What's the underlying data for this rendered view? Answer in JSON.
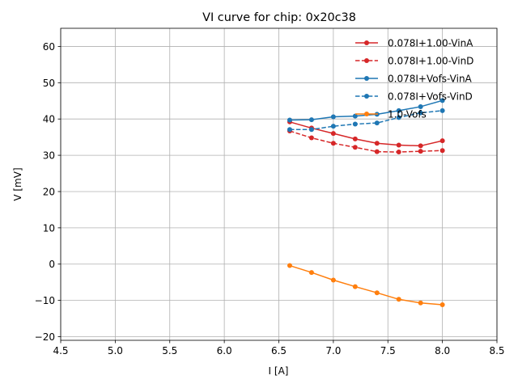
{
  "chart_data": {
    "type": "line",
    "title": "VI curve for chip: 0x20c38",
    "xlabel": "I [A]",
    "ylabel": "V [mV]",
    "xlim": [
      4.5,
      8.5
    ],
    "ylim": [
      -21,
      65
    ],
    "xticks": [
      4.5,
      5.0,
      5.5,
      6.0,
      6.5,
      7.0,
      7.5,
      8.0,
      8.5
    ],
    "xtick_labels": [
      "4.5",
      "5.0",
      "5.5",
      "6.0",
      "6.5",
      "7.0",
      "7.5",
      "8.0",
      "8.5"
    ],
    "yticks": [
      -20,
      -10,
      0,
      10,
      20,
      30,
      40,
      50,
      60
    ],
    "ytick_labels": [
      "−20",
      "−10",
      "0",
      "10",
      "20",
      "30",
      "40",
      "50",
      "60"
    ],
    "grid": true,
    "legend_position": "top-right",
    "x": [
      6.6,
      6.8,
      7.0,
      7.2,
      7.4,
      7.6,
      7.8,
      8.0
    ],
    "series": [
      {
        "name": "0.078I+1.00-VinA",
        "color": "#d62728",
        "dashed": false,
        "values": [
          39.2,
          37.5,
          36.0,
          34.5,
          33.3,
          32.8,
          32.6,
          34.0
        ]
      },
      {
        "name": "0.078I+1.00-VinD",
        "color": "#d62728",
        "dashed": true,
        "values": [
          36.7,
          34.8,
          33.3,
          32.2,
          31.0,
          30.9,
          31.1,
          31.3
        ]
      },
      {
        "name": "0.078I+Vofs-VinA",
        "color": "#1f77b4",
        "dashed": false,
        "values": [
          39.7,
          39.8,
          40.6,
          40.8,
          41.3,
          42.3,
          43.4,
          45.1
        ]
      },
      {
        "name": "0.078I+Vofs-VinD",
        "color": "#1f77b4",
        "dashed": true,
        "values": [
          37.1,
          37.1,
          38.0,
          38.6,
          38.9,
          40.4,
          41.7,
          42.3
        ]
      },
      {
        "name": "1.0-Vofs",
        "color": "#ff7f0e",
        "dashed": false,
        "values": [
          -0.4,
          -2.3,
          -4.4,
          -6.2,
          -7.9,
          -9.7,
          -10.7,
          -11.2
        ]
      }
    ]
  }
}
